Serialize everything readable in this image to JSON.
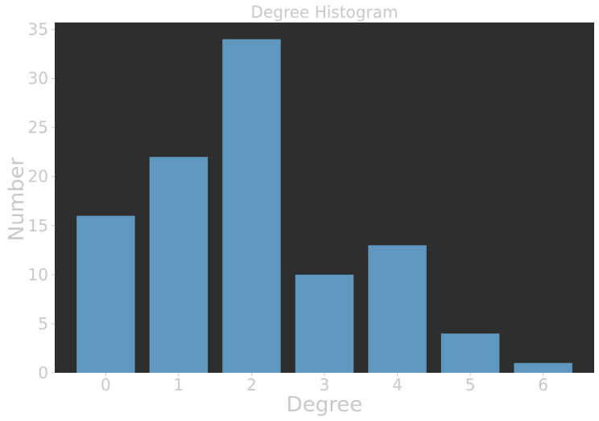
{
  "chart_data": {
    "type": "bar",
    "title": "Degree Histogram",
    "xlabel": "Degree",
    "ylabel": "Number",
    "categories": [
      "0",
      "1",
      "2",
      "3",
      "4",
      "5",
      "6"
    ],
    "values": [
      16,
      22,
      34,
      10,
      13,
      4,
      1
    ],
    "ylim": [
      0,
      35.7
    ],
    "yticks": [
      "0",
      "5",
      "10",
      "15",
      "20",
      "25",
      "30",
      "35"
    ],
    "grid": false,
    "legend": "none",
    "colors": {
      "bar": "#5f97bf",
      "plot_background": "#2e2e2e",
      "text": "#c8c8c8"
    }
  }
}
